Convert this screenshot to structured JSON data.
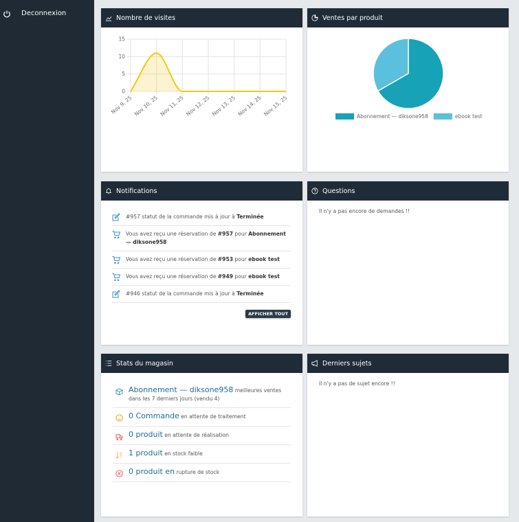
{
  "sidebar": {
    "logout": "Deconnexion"
  },
  "panels": {
    "visits": {
      "title": "Nombre de visites"
    },
    "sales": {
      "title": "Ventes par produit"
    },
    "notifications": {
      "title": "Notifications",
      "items": [
        {
          "segments": [
            {
              "text": "#957 statut de la commande mis à jour à ",
              "bold": false
            },
            {
              "text": "Terminée",
              "bold": true
            }
          ]
        },
        {
          "segments": [
            {
              "text": "Vous avez reçu une réservation de ",
              "bold": false
            },
            {
              "text": "#957",
              "bold": true
            },
            {
              "text": " pour ",
              "bold": false
            },
            {
              "text": "Abonnement — diksone958",
              "bold": true
            }
          ]
        },
        {
          "segments": [
            {
              "text": "Vous avez reçu une réservation de ",
              "bold": false
            },
            {
              "text": "#953",
              "bold": true
            },
            {
              "text": " pour ",
              "bold": false
            },
            {
              "text": "ebook test",
              "bold": true
            }
          ]
        },
        {
          "segments": [
            {
              "text": "Vous avez reçu une réservation de ",
              "bold": false
            },
            {
              "text": "#949",
              "bold": true
            },
            {
              "text": " pour ",
              "bold": false
            },
            {
              "text": "ebook test",
              "bold": true
            }
          ]
        },
        {
          "segments": [
            {
              "text": "#946 statut de la commande mis à jour à ",
              "bold": false
            },
            {
              "text": "Terminée",
              "bold": true
            }
          ]
        }
      ],
      "button": "AFFICHER TOUT"
    },
    "questions": {
      "title": "Questions",
      "empty": "Il n'y a pas encore de demandes !!"
    },
    "store_stats": {
      "title": "Stats du magasin",
      "items": [
        {
          "link": "Abonnement — diksone958",
          "text": "meilleures ventes dans les 7 derniers jours (vendu 4)"
        },
        {
          "link": "0 Commande",
          "text": "en attente de traitement"
        },
        {
          "link": "0 produit",
          "text": "en attente de réalisation"
        },
        {
          "link": "1 produit",
          "text": "en stock faible"
        },
        {
          "link": "0 produit en",
          "text": "rupture de stock"
        }
      ]
    },
    "topics": {
      "title": "Derniers sujets",
      "empty": "Il n'y a pas de sujet encore !!"
    }
  },
  "chart_data": [
    {
      "type": "line",
      "categories": [
        "Nov 9, 25",
        "Nov 10, 25",
        "Nov 11, 25",
        "Nov 12, 25",
        "Nov 13, 25",
        "Nov 14, 25",
        "Nov 15, 25"
      ],
      "series": [
        {
          "color": "#f2c811",
          "values": [
            0,
            11,
            0,
            0,
            0,
            0,
            0
          ]
        }
      ],
      "ylim": [
        0,
        15
      ],
      "yticks": [
        0,
        5,
        10,
        15
      ],
      "grid": true
    },
    {
      "type": "pie",
      "categories": [
        "Abonnement — diksone958",
        "ebook test"
      ],
      "values": [
        2,
        1
      ],
      "colors": [
        "#17a2b8",
        "#5bc0de"
      ]
    }
  ]
}
